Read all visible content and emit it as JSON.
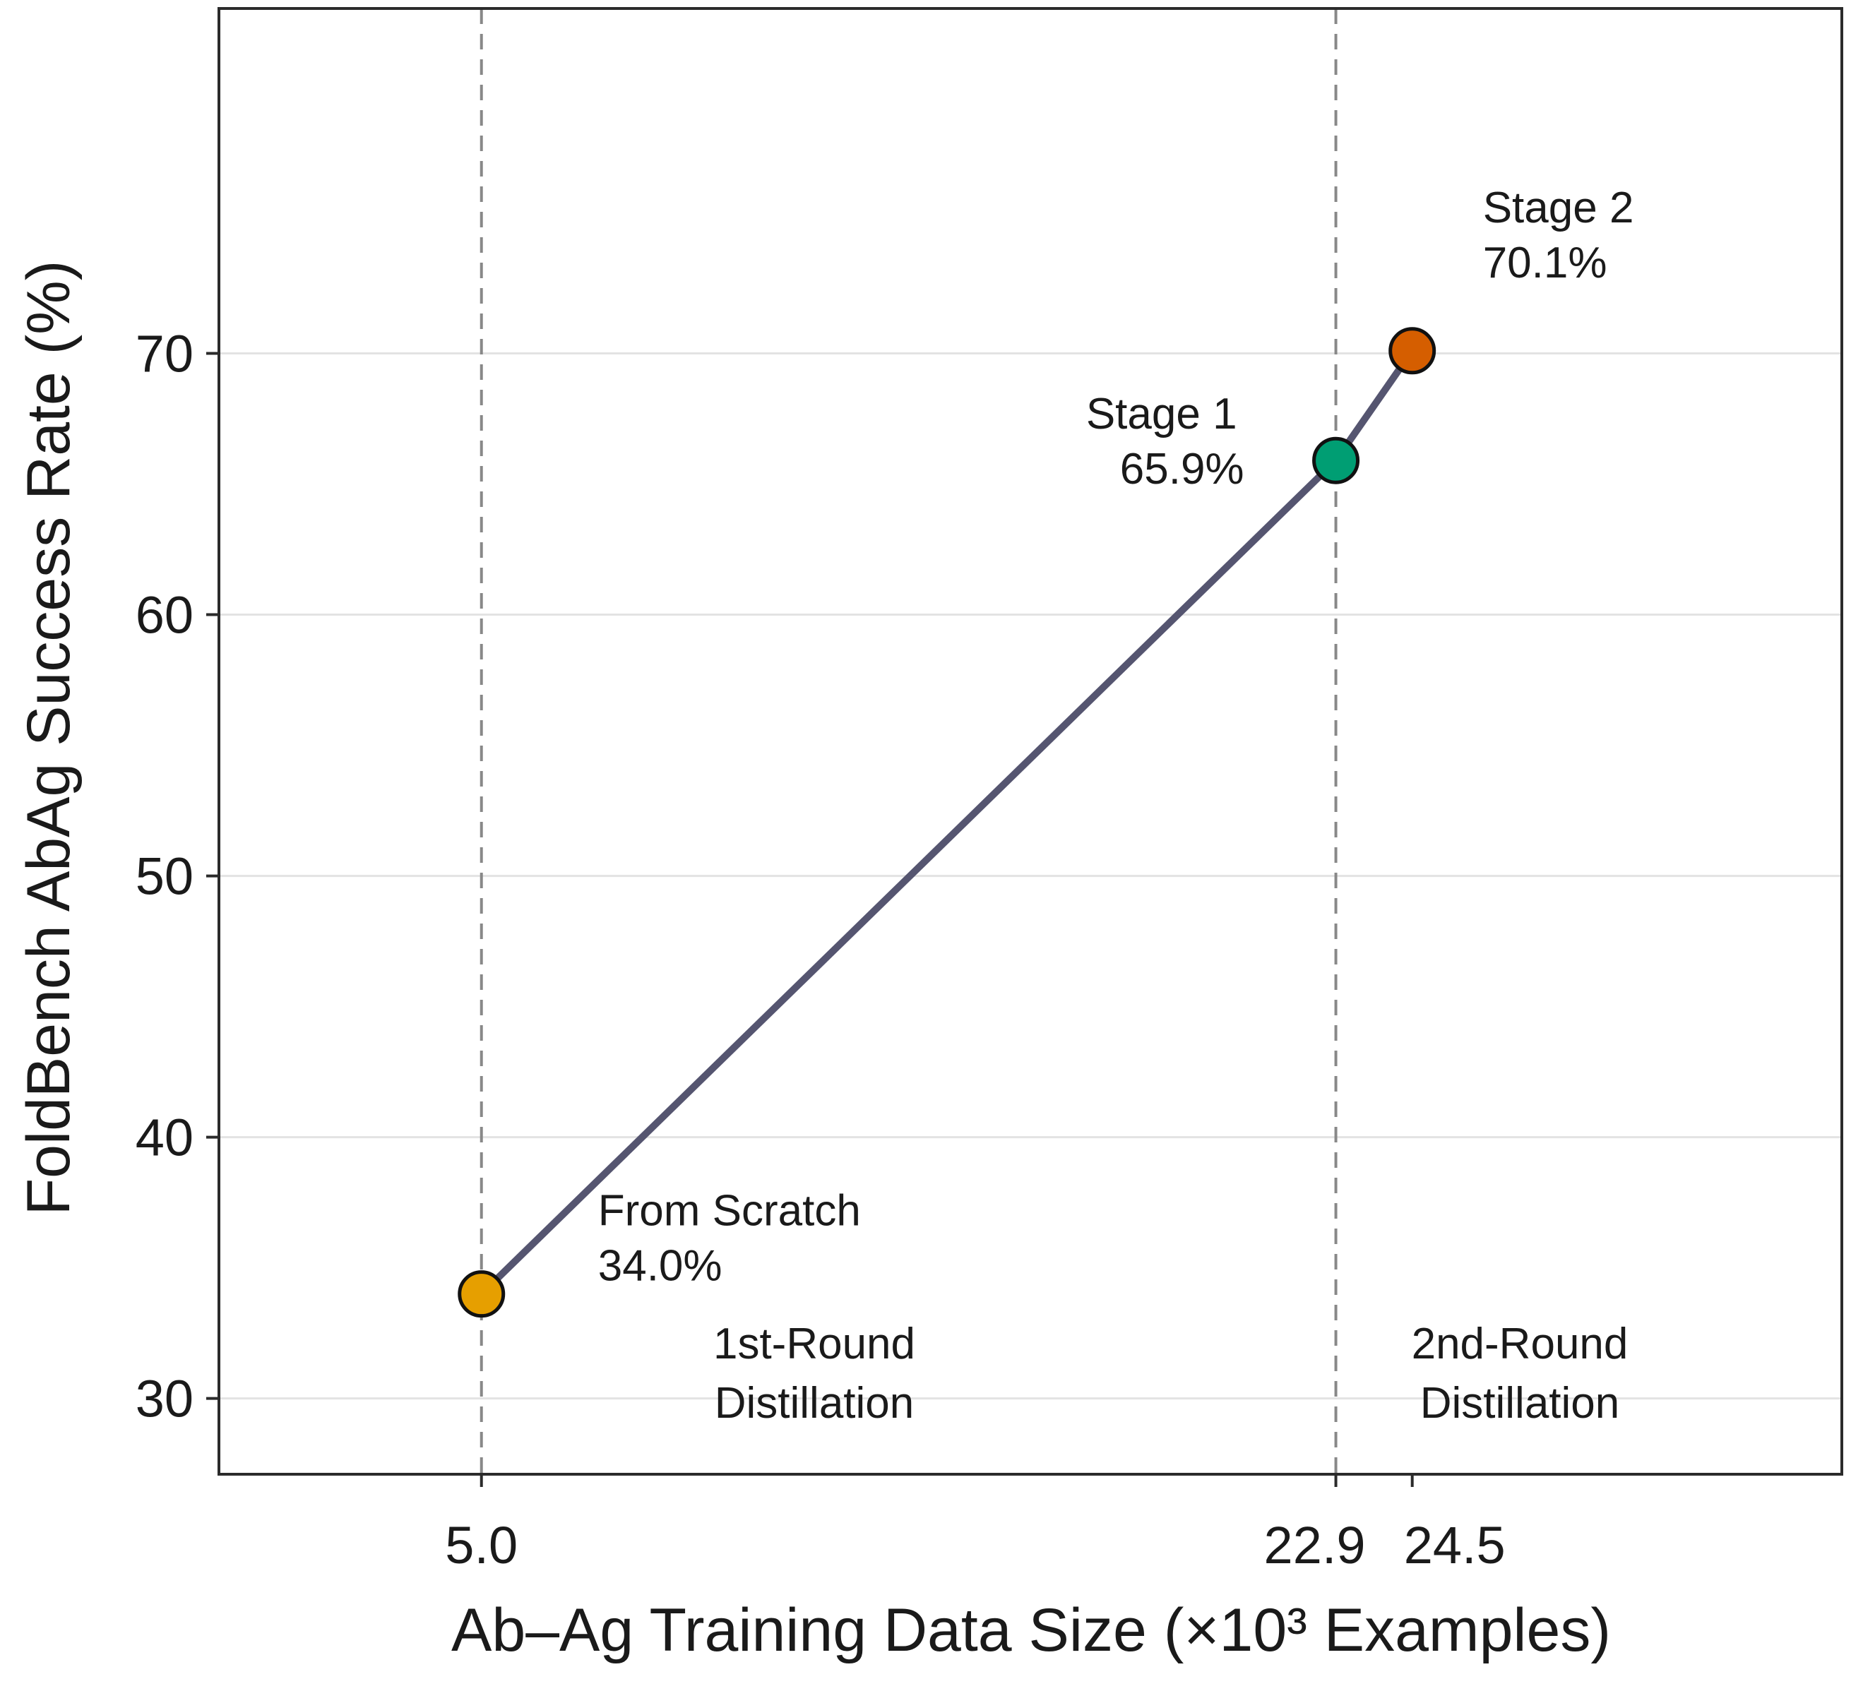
{
  "chart_data": {
    "type": "line",
    "xlabel": "Ab–Ag Training Data Size  (×10³ Examples)",
    "ylabel": "FoldBench AbAg Success Rate (%)",
    "xlim": [
      -0.5,
      33.5
    ],
    "ylim": [
      27.1,
      83.2
    ],
    "x_ticks": [
      5.0,
      22.9,
      24.5
    ],
    "x_tick_labels": [
      "5.0",
      "22.9",
      "24.5"
    ],
    "y_ticks": [
      30,
      40,
      50,
      60,
      70
    ],
    "y_tick_labels": [
      "30",
      "40",
      "50",
      "60",
      "70"
    ],
    "grid": "horizontal",
    "line_color": "#555570",
    "points": [
      {
        "x": 5.0,
        "y": 34.0,
        "label": "From Scratch",
        "value_label": "34.0%",
        "color": "#E69F00"
      },
      {
        "x": 22.9,
        "y": 65.9,
        "label": "Stage 1",
        "value_label": "65.9%",
        "color": "#009E73"
      },
      {
        "x": 24.5,
        "y": 70.1,
        "label": "Stage 2",
        "value_label": "70.1%",
        "color": "#D55E00"
      }
    ],
    "vlines": [
      5.0,
      22.9
    ],
    "regions": [
      {
        "line1": "1st-Round",
        "line2": "Distillation"
      },
      {
        "line1": "2nd-Round",
        "line2": "Distillation"
      }
    ]
  }
}
